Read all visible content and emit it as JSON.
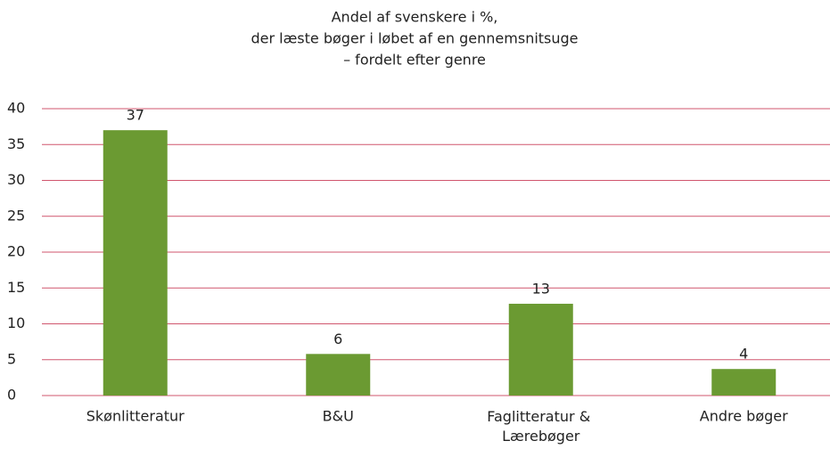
{
  "chart_data": {
    "type": "bar",
    "title": [
      "Andel af svenskere i %,",
      "der læste bøger i løbet af en gennemsnitsuge",
      "– fordelt efter genre"
    ],
    "categories": [
      "Skønlitteratur",
      "B&U",
      "Faglitteratur & Lærebøger",
      "Andre bøger"
    ],
    "values": [
      37,
      5.8,
      12.8,
      3.7
    ],
    "value_labels": [
      "37",
      "6",
      "13",
      "4"
    ],
    "color": "#6b9a32",
    "grid_color": "#d0566e",
    "ylim": [
      0,
      40
    ],
    "yticks": [
      0,
      5,
      10,
      15,
      20,
      25,
      30,
      35,
      40
    ],
    "grid": true
  }
}
